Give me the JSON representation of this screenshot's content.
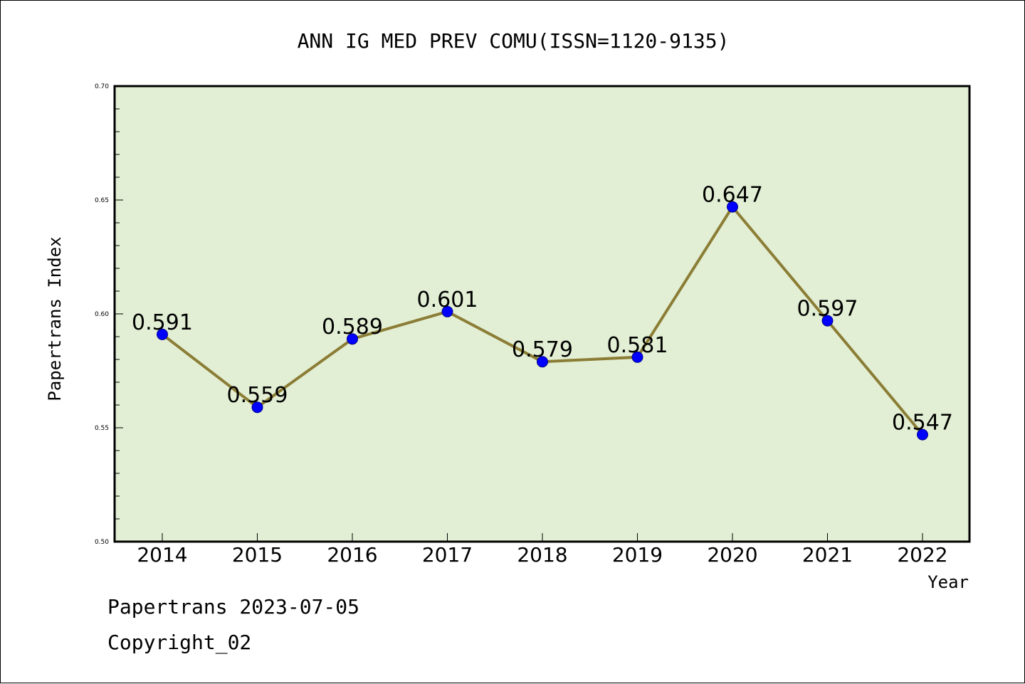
{
  "chart_data": {
    "type": "line",
    "title": "ANN IG MED PREV COMU(ISSN=1120-9135)",
    "xlabel": "Year",
    "ylabel": "Papertrans Index",
    "categories": [
      "2014",
      "2015",
      "2016",
      "2017",
      "2018",
      "2019",
      "2020",
      "2021",
      "2022"
    ],
    "series": [
      {
        "values": [
          0.591,
          0.559,
          0.589,
          0.601,
          0.579,
          0.581,
          0.647,
          0.597,
          0.547
        ],
        "labels": [
          "0.591",
          "0.559",
          "0.589",
          "0.601",
          "0.579",
          "0.581",
          "0.647",
          "0.597",
          "0.547"
        ]
      }
    ],
    "ylim": [
      0.5,
      0.7
    ],
    "yticks": [
      "0.50",
      "0.55",
      "0.60",
      "0.65",
      "0.70"
    ],
    "yminor_step": 0.01,
    "grid": false,
    "colors": {
      "plot_background": "#e2efd4",
      "line": "#8b7d35",
      "marker": "#0000ff",
      "marker_edge": "#00008b",
      "axes": "#000000"
    }
  },
  "footer": {
    "line1": "Papertrans 2023-07-05",
    "line2": "Copyright_02"
  }
}
